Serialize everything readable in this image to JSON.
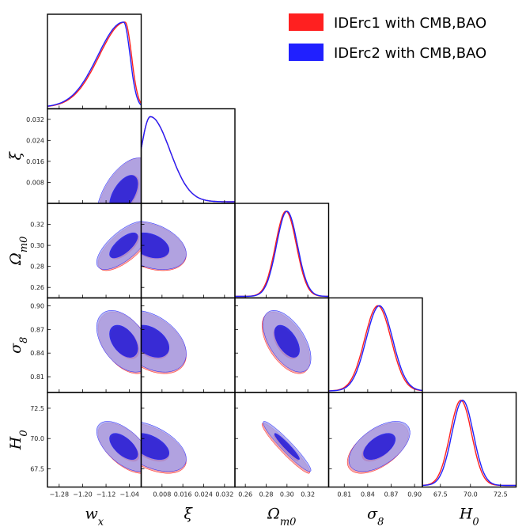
{
  "chart_data": {
    "type": "corner",
    "legend": {
      "position": "top-right",
      "entries": [
        {
          "label": "IDErc1 with CMB,BAO",
          "color": "#ff2020",
          "outer_fill": "#f4a0a0",
          "inner_fill": "#e82020"
        },
        {
          "label": "IDErc2 with CMB,BAO",
          "color": "#2020ff",
          "outer_fill": "#a0a0ee",
          "inner_fill": "#1a14d8"
        }
      ]
    },
    "parameters": [
      {
        "key": "wx",
        "label": "w",
        "sub": "x",
        "range": [
          -1.32,
          -1.0
        ],
        "ticks": [
          -1.28,
          -1.2,
          -1.12,
          -1.04
        ],
        "tick_labels": [
          "−1.28",
          "−1.20",
          "−1.12",
          "−1.04"
        ],
        "mean": -1.06,
        "sigma": 0.04
      },
      {
        "key": "xi",
        "label": "ξ",
        "sub": "",
        "range": [
          0.0,
          0.036
        ],
        "ticks": [
          0.008,
          0.016,
          0.024,
          0.032
        ],
        "tick_labels": [
          "0.008",
          "0.016",
          "0.024",
          "0.032"
        ],
        "mean": 0.004,
        "sigma": 0.006
      },
      {
        "key": "om",
        "label": "Ω",
        "sub": "m0",
        "range": [
          0.25,
          0.34
        ],
        "ticks": [
          0.26,
          0.28,
          0.3,
          0.32
        ],
        "tick_labels": [
          "0.26",
          "0.28",
          "0.30",
          "0.32"
        ],
        "mean": 0.298,
        "sigma": 0.01
      },
      {
        "key": "s8",
        "label": "σ",
        "sub": "8",
        "range": [
          0.79,
          0.91
        ],
        "ticks": [
          0.81,
          0.84,
          0.87,
          0.9
        ],
        "tick_labels": [
          "0.81",
          "0.84",
          "0.87",
          "0.90"
        ],
        "mean": 0.855,
        "sigma": 0.017
      },
      {
        "key": "h0",
        "label": "H",
        "sub": "0",
        "range": [
          66.0,
          73.8
        ],
        "ticks": [
          67.5,
          70.0,
          72.5
        ],
        "tick_labels": [
          "67.5",
          "70.0",
          "72.5"
        ],
        "mean": 69.3,
        "sigma": 0.9
      }
    ],
    "series": [
      {
        "name": "IDErc1 with CMB,BAO",
        "peaks": {
          "wx": -1.055,
          "xi": 0.0035,
          "om": 0.299,
          "s8": 0.853,
          "h0": 69.2
        }
      },
      {
        "name": "IDErc2 with CMB,BAO",
        "peaks": {
          "wx": -1.06,
          "xi": 0.0035,
          "om": 0.3,
          "s8": 0.855,
          "h0": 69.35
        }
      }
    ],
    "correlations": {
      "xi|wx": 0.55,
      "om|wx": 0.7,
      "om|xi": -0.35,
      "s8|wx": -0.45,
      "s8|xi": -0.4,
      "s8|om": -0.55,
      "h0|wx": -0.6,
      "h0|xi": -0.5,
      "h0|om": -0.95,
      "h0|s8": 0.55
    }
  }
}
